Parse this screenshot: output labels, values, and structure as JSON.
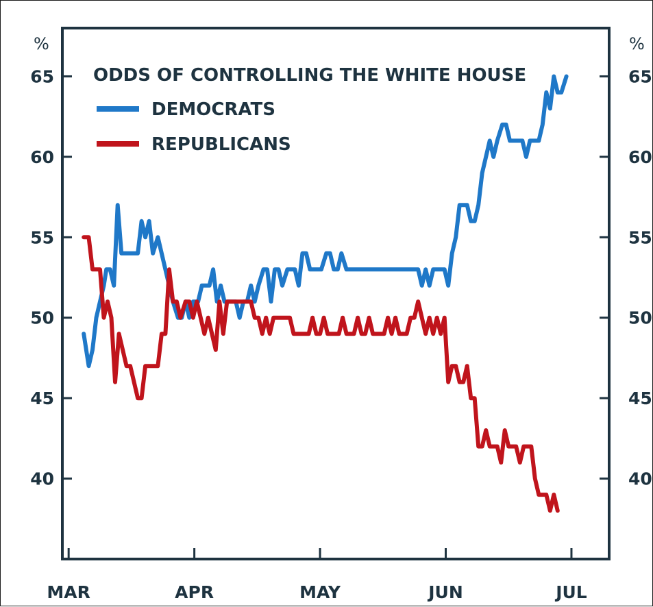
{
  "chart_data": {
    "type": "line",
    "title": "ODDS OF CONTROLLING THE WHITE HOUSE",
    "y_unit_left": "%",
    "y_unit_right": "%",
    "ylim": [
      35,
      68
    ],
    "y_ticks": [
      40,
      45,
      50,
      55,
      60,
      65
    ],
    "xlim": [
      -0.05,
      4.3
    ],
    "x_ticks": [
      {
        "label": "MAR",
        "x": 0
      },
      {
        "label": "APR",
        "x": 1
      },
      {
        "label": "MAY",
        "x": 2
      },
      {
        "label": "JUN",
        "x": 3
      },
      {
        "label": "JUL",
        "x": 4
      }
    ],
    "legend_position": "top-left",
    "grid": false,
    "series": [
      {
        "name": "DEMOCRATS",
        "color": "#1f78c8",
        "points": [
          [
            0.12,
            49
          ],
          [
            0.16,
            47
          ],
          [
            0.19,
            48
          ],
          [
            0.22,
            50
          ],
          [
            0.25,
            51
          ],
          [
            0.28,
            52
          ],
          [
            0.3,
            53
          ],
          [
            0.33,
            53
          ],
          [
            0.36,
            52
          ],
          [
            0.39,
            57
          ],
          [
            0.42,
            54
          ],
          [
            0.45,
            54
          ],
          [
            0.48,
            54
          ],
          [
            0.51,
            54
          ],
          [
            0.55,
            54
          ],
          [
            0.58,
            56
          ],
          [
            0.61,
            55
          ],
          [
            0.64,
            56
          ],
          [
            0.67,
            54
          ],
          [
            0.71,
            55
          ],
          [
            0.74,
            54
          ],
          [
            0.77,
            53
          ],
          [
            0.8,
            52
          ],
          [
            0.83,
            51
          ],
          [
            0.87,
            50
          ],
          [
            0.9,
            50
          ],
          [
            0.93,
            51
          ],
          [
            0.96,
            50
          ],
          [
            0.99,
            51
          ],
          [
            1.03,
            51
          ],
          [
            1.06,
            52
          ],
          [
            1.09,
            52
          ],
          [
            1.12,
            52
          ],
          [
            1.15,
            53
          ],
          [
            1.18,
            51
          ],
          [
            1.21,
            52
          ],
          [
            1.24,
            51
          ],
          [
            1.27,
            51
          ],
          [
            1.3,
            51
          ],
          [
            1.33,
            51
          ],
          [
            1.36,
            50
          ],
          [
            1.39,
            51
          ],
          [
            1.42,
            51
          ],
          [
            1.45,
            52
          ],
          [
            1.48,
            51
          ],
          [
            1.51,
            52
          ],
          [
            1.55,
            53
          ],
          [
            1.58,
            53
          ],
          [
            1.61,
            51
          ],
          [
            1.64,
            53
          ],
          [
            1.67,
            53
          ],
          [
            1.7,
            52
          ],
          [
            1.74,
            53
          ],
          [
            1.77,
            53
          ],
          [
            1.8,
            53
          ],
          [
            1.83,
            52
          ],
          [
            1.86,
            54
          ],
          [
            1.89,
            54
          ],
          [
            1.92,
            53
          ],
          [
            1.95,
            53
          ],
          [
            1.98,
            53
          ],
          [
            2.01,
            53
          ],
          [
            2.05,
            54
          ],
          [
            2.08,
            54
          ],
          [
            2.11,
            53
          ],
          [
            2.14,
            53
          ],
          [
            2.17,
            54
          ],
          [
            2.21,
            53
          ],
          [
            2.3,
            53
          ],
          [
            2.4,
            53
          ],
          [
            2.5,
            53
          ],
          [
            2.6,
            53
          ],
          [
            2.7,
            53
          ],
          [
            2.78,
            53
          ],
          [
            2.81,
            52
          ],
          [
            2.84,
            53
          ],
          [
            2.87,
            52
          ],
          [
            2.9,
            53
          ],
          [
            2.93,
            53
          ],
          [
            2.96,
            53
          ],
          [
            2.99,
            53
          ],
          [
            3.02,
            52
          ],
          [
            3.05,
            54
          ],
          [
            3.08,
            55
          ],
          [
            3.11,
            57
          ],
          [
            3.14,
            57
          ],
          [
            3.17,
            57
          ],
          [
            3.2,
            56
          ],
          [
            3.23,
            56
          ],
          [
            3.26,
            57
          ],
          [
            3.29,
            59
          ],
          [
            3.32,
            60
          ],
          [
            3.35,
            61
          ],
          [
            3.38,
            60
          ],
          [
            3.41,
            61
          ],
          [
            3.45,
            62
          ],
          [
            3.48,
            62
          ],
          [
            3.51,
            61
          ],
          [
            3.54,
            61
          ],
          [
            3.58,
            61
          ],
          [
            3.61,
            61
          ],
          [
            3.64,
            60
          ],
          [
            3.67,
            61
          ],
          [
            3.71,
            61
          ],
          [
            3.74,
            61
          ],
          [
            3.77,
            62
          ],
          [
            3.8,
            64
          ],
          [
            3.83,
            63
          ],
          [
            3.86,
            65
          ],
          [
            3.89,
            64
          ],
          [
            3.92,
            64
          ],
          [
            3.96,
            65
          ]
        ]
      },
      {
        "name": "REPUBLICANS",
        "color": "#c0141c",
        "points": [
          [
            0.12,
            55
          ],
          [
            0.16,
            55
          ],
          [
            0.19,
            53
          ],
          [
            0.22,
            53
          ],
          [
            0.25,
            53
          ],
          [
            0.28,
            50
          ],
          [
            0.31,
            51
          ],
          [
            0.34,
            50
          ],
          [
            0.37,
            46
          ],
          [
            0.4,
            49
          ],
          [
            0.43,
            48
          ],
          [
            0.46,
            47
          ],
          [
            0.49,
            47
          ],
          [
            0.52,
            46
          ],
          [
            0.55,
            45
          ],
          [
            0.58,
            45
          ],
          [
            0.61,
            47
          ],
          [
            0.64,
            47
          ],
          [
            0.67,
            47
          ],
          [
            0.71,
            47
          ],
          [
            0.74,
            49
          ],
          [
            0.77,
            49
          ],
          [
            0.8,
            53
          ],
          [
            0.83,
            51
          ],
          [
            0.86,
            51
          ],
          [
            0.89,
            50
          ],
          [
            0.93,
            51
          ],
          [
            0.96,
            51
          ],
          [
            0.99,
            50
          ],
          [
            1.02,
            51
          ],
          [
            1.05,
            50
          ],
          [
            1.08,
            49
          ],
          [
            1.11,
            50
          ],
          [
            1.14,
            49
          ],
          [
            1.17,
            48
          ],
          [
            1.2,
            51
          ],
          [
            1.23,
            49
          ],
          [
            1.26,
            51
          ],
          [
            1.29,
            51
          ],
          [
            1.32,
            51
          ],
          [
            1.36,
            51
          ],
          [
            1.39,
            51
          ],
          [
            1.42,
            51
          ],
          [
            1.45,
            51
          ],
          [
            1.48,
            50
          ],
          [
            1.51,
            50
          ],
          [
            1.54,
            49
          ],
          [
            1.57,
            50
          ],
          [
            1.6,
            49
          ],
          [
            1.63,
            50
          ],
          [
            1.66,
            50
          ],
          [
            1.69,
            50
          ],
          [
            1.72,
            50
          ],
          [
            1.76,
            50
          ],
          [
            1.79,
            49
          ],
          [
            1.82,
            49
          ],
          [
            1.85,
            49
          ],
          [
            1.88,
            49
          ],
          [
            1.91,
            49
          ],
          [
            1.94,
            50
          ],
          [
            1.97,
            49
          ],
          [
            2.0,
            49
          ],
          [
            2.03,
            50
          ],
          [
            2.06,
            49
          ],
          [
            2.09,
            49
          ],
          [
            2.12,
            49
          ],
          [
            2.15,
            49
          ],
          [
            2.18,
            50
          ],
          [
            2.21,
            49
          ],
          [
            2.24,
            49
          ],
          [
            2.27,
            49
          ],
          [
            2.3,
            50
          ],
          [
            2.33,
            49
          ],
          [
            2.36,
            49
          ],
          [
            2.39,
            50
          ],
          [
            2.42,
            49
          ],
          [
            2.45,
            49
          ],
          [
            2.48,
            49
          ],
          [
            2.51,
            49
          ],
          [
            2.54,
            50
          ],
          [
            2.57,
            49
          ],
          [
            2.6,
            50
          ],
          [
            2.63,
            49
          ],
          [
            2.66,
            49
          ],
          [
            2.69,
            49
          ],
          [
            2.72,
            50
          ],
          [
            2.75,
            50
          ],
          [
            2.78,
            51
          ],
          [
            2.81,
            50
          ],
          [
            2.84,
            49
          ],
          [
            2.87,
            50
          ],
          [
            2.9,
            49
          ],
          [
            2.93,
            50
          ],
          [
            2.96,
            49
          ],
          [
            2.99,
            50
          ],
          [
            3.02,
            46
          ],
          [
            3.05,
            47
          ],
          [
            3.08,
            47
          ],
          [
            3.11,
            46
          ],
          [
            3.14,
            46
          ],
          [
            3.17,
            47
          ],
          [
            3.2,
            45
          ],
          [
            3.23,
            45
          ],
          [
            3.26,
            42
          ],
          [
            3.29,
            42
          ],
          [
            3.32,
            43
          ],
          [
            3.35,
            42
          ],
          [
            3.38,
            42
          ],
          [
            3.41,
            42
          ],
          [
            3.44,
            41
          ],
          [
            3.47,
            43
          ],
          [
            3.5,
            42
          ],
          [
            3.53,
            42
          ],
          [
            3.56,
            42
          ],
          [
            3.59,
            41
          ],
          [
            3.62,
            42
          ],
          [
            3.65,
            42
          ],
          [
            3.68,
            42
          ],
          [
            3.71,
            40
          ],
          [
            3.74,
            39
          ],
          [
            3.77,
            39
          ],
          [
            3.8,
            39
          ],
          [
            3.83,
            38
          ],
          [
            3.86,
            39
          ],
          [
            3.89,
            38
          ]
        ]
      }
    ]
  }
}
